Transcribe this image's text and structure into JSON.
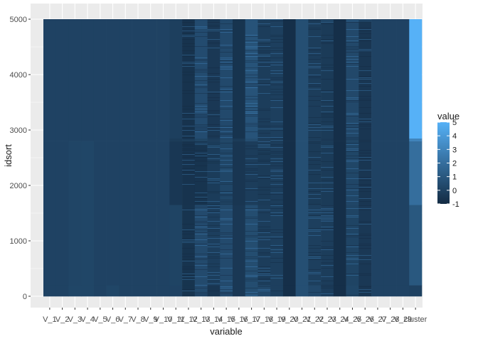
{
  "chart_data": {
    "type": "heatmap",
    "xlabel": "variable",
    "ylabel": "idsort",
    "categories": [
      "V_1",
      "V_2",
      "V_3",
      "V_4",
      "V_5",
      "V_6",
      "V_7",
      "V_8",
      "V_9",
      "V_10",
      "V_11",
      "V_12",
      "V_13",
      "V_14",
      "V_15",
      "V_16",
      "V_17",
      "V_18",
      "V_19",
      "V_20",
      "V_21",
      "V_22",
      "V_23",
      "V_24",
      "V_25",
      "V_26",
      "V_27",
      "V_28",
      "V_29",
      "cluster"
    ],
    "tick_labels": [
      "V_1",
      "V_2",
      "V_3",
      "V_4",
      "V_5",
      "V_6",
      "V_7",
      "V_8",
      "V_9",
      "V_10",
      "V_11",
      "V_12",
      "V_13",
      "V_14",
      "V_15",
      "V_16",
      "V_17",
      "V_18",
      "V_19",
      "V_20",
      "V_21",
      "V_22",
      "V_23",
      "V_24",
      "V_25",
      "V_26",
      "V_27",
      "V_28",
      "V_29",
      "cluster"
    ],
    "ylim": [
      0,
      5000
    ],
    "yticks": [
      "0",
      "1000",
      "2000",
      "3000",
      "4000",
      "5000"
    ],
    "row_breaks": [
      200,
      1650,
      2800,
      2850,
      5000
    ],
    "values": [
      [
        0.05,
        0.05,
        0.05,
        0.05,
        0.05
      ],
      [
        0.05,
        0.05,
        0.05,
        0.05,
        0.05
      ],
      [
        0.2,
        0.15,
        0.15,
        0.05,
        0.05
      ],
      [
        0.2,
        0.2,
        0.2,
        0.05,
        0.05
      ],
      [
        0.05,
        0.05,
        0.05,
        0.05,
        0.05
      ],
      [
        0.2,
        0.05,
        0.05,
        0.05,
        0.05
      ],
      [
        0.05,
        0.05,
        0.05,
        0.05,
        0.05
      ],
      [
        0.05,
        0.05,
        0.05,
        0.05,
        0.05
      ],
      [
        0.05,
        0.05,
        0.05,
        0.05,
        0.05
      ],
      [
        0.05,
        0.05,
        0.05,
        0.05,
        0.05
      ],
      [
        0.05,
        0.1,
        -0.45,
        -0.3,
        -0.1
      ],
      [
        -0.6,
        -0.6,
        -0.65,
        -0.2,
        -0.65
      ],
      [
        0.4,
        0.4,
        -0.6,
        0.1,
        0.45
      ],
      [
        -0.5,
        -0.15,
        -0.25,
        -0.2,
        -0.4
      ],
      [
        0.4,
        0.4,
        0.2,
        0.2,
        0.35
      ],
      [
        -0.4,
        -0.4,
        -0.5,
        -0.3,
        -0.6
      ],
      [
        0.5,
        0.5,
        -0.2,
        0.5,
        0.8
      ],
      [
        0.3,
        -0.2,
        -0.3,
        -0.2,
        -0.2
      ],
      [
        -0.1,
        -0.1,
        -0.2,
        -0.3,
        -0.1
      ],
      [
        -0.8,
        -0.8,
        -0.8,
        -0.8,
        -0.8
      ],
      [
        0.6,
        0.6,
        0.6,
        0.6,
        0.6
      ],
      [
        0.3,
        -0.1,
        -0.3,
        -0.2,
        -0.2
      ],
      [
        -0.2,
        -0.2,
        -0.3,
        -0.4,
        -0.3
      ],
      [
        -0.8,
        -0.8,
        -0.8,
        -0.8,
        -0.8
      ],
      [
        0.2,
        0.1,
        0.2,
        0.1,
        0.3
      ],
      [
        -0.5,
        -0.4,
        -0.5,
        -0.5,
        -0.5
      ],
      [
        0.05,
        0.05,
        0.05,
        0.05,
        0.05
      ],
      [
        0.05,
        0.05,
        0.05,
        0.05,
        0.05
      ],
      [
        0.05,
        0.05,
        0.05,
        0.05,
        0.05
      ],
      [
        0,
        1,
        2,
        3,
        5
      ]
    ],
    "stripe_columns": [
      11,
      12,
      13,
      14,
      16,
      17,
      18,
      21,
      22,
      24,
      25
    ],
    "legend": {
      "title": "value",
      "position": "right",
      "breaks": [
        5,
        4,
        3,
        2,
        1,
        0,
        -1
      ],
      "labels": [
        "5",
        "4",
        "3",
        "2",
        "1",
        "0",
        "-1"
      ],
      "range": [
        -1,
        5
      ]
    },
    "colors": {
      "low": "#132B43",
      "high": "#56B1F7",
      "panel_background": "#EBEBEB",
      "grid": "#FFFFFF"
    },
    "grid": true
  }
}
